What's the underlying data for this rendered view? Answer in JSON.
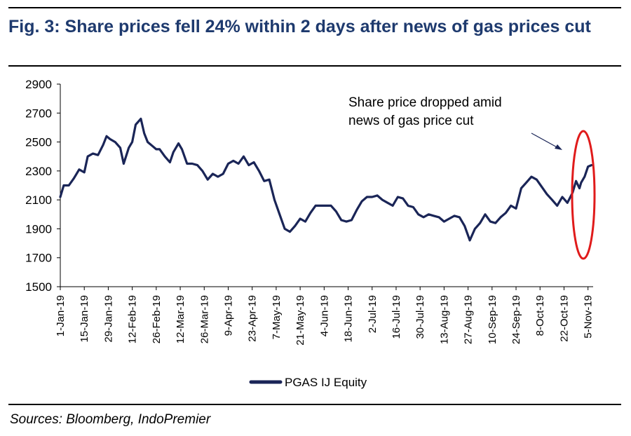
{
  "figure": {
    "title": "Fig. 3: Share prices fell 24% within 2 days after news of gas prices cut",
    "source": "Sources: Bloomberg, IndoPremier"
  },
  "colors": {
    "line": "#1a2557",
    "title": "#1e3a6e",
    "highlight": "#e01b1b"
  },
  "chart_data": {
    "type": "line",
    "title": "Fig. 3: Share prices fell 24% within 2 days after news of gas prices cut",
    "xlabel": "",
    "ylabel": "",
    "ylim": [
      1500,
      2900
    ],
    "yticks": [
      1500,
      1700,
      1900,
      2100,
      2300,
      2500,
      2700,
      2900
    ],
    "xlim": [
      "2019-01-01",
      "2019-11-08"
    ],
    "xtick_labels": [
      "1-Jan-19",
      "15-Jan-19",
      "29-Jan-19",
      "12-Feb-19",
      "26-Feb-19",
      "12-Mar-19",
      "26-Mar-19",
      "9-Apr-19",
      "23-Apr-19",
      "7-May-19",
      "21-May-19",
      "4-Jun-19",
      "18-Jun-19",
      "2-Jul-19",
      "16-Jul-19",
      "30-Jul-19",
      "13-Aug-19",
      "27-Aug-19",
      "10-Sep-19",
      "24-Sep-19",
      "8-Oct-19",
      "22-Oct-19",
      "5-Nov-19"
    ],
    "grid": false,
    "legend_position": "bottom",
    "series": [
      {
        "name": "PGAS IJ Equity",
        "x": [
          "2019-01-01",
          "2019-01-03",
          "2019-01-06",
          "2019-01-09",
          "2019-01-12",
          "2019-01-15",
          "2019-01-17",
          "2019-01-20",
          "2019-01-23",
          "2019-01-26",
          "2019-01-28",
          "2019-01-30",
          "2019-02-02",
          "2019-02-05",
          "2019-02-07",
          "2019-02-10",
          "2019-02-12",
          "2019-02-14",
          "2019-02-17",
          "2019-02-19",
          "2019-02-21",
          "2019-02-24",
          "2019-02-26",
          "2019-02-28",
          "2019-03-03",
          "2019-03-06",
          "2019-03-08",
          "2019-03-11",
          "2019-03-13",
          "2019-03-16",
          "2019-03-19",
          "2019-03-22",
          "2019-03-25",
          "2019-03-28",
          "2019-03-31",
          "2019-04-03",
          "2019-04-06",
          "2019-04-09",
          "2019-04-12",
          "2019-04-15",
          "2019-04-18",
          "2019-04-21",
          "2019-04-24",
          "2019-04-27",
          "2019-04-30",
          "2019-05-03",
          "2019-05-06",
          "2019-05-09",
          "2019-05-12",
          "2019-05-15",
          "2019-05-18",
          "2019-05-21",
          "2019-05-24",
          "2019-05-27",
          "2019-05-30",
          "2019-06-02",
          "2019-06-05",
          "2019-06-08",
          "2019-06-11",
          "2019-06-14",
          "2019-06-17",
          "2019-06-20",
          "2019-06-23",
          "2019-06-26",
          "2019-06-29",
          "2019-07-02",
          "2019-07-05",
          "2019-07-08",
          "2019-07-11",
          "2019-07-14",
          "2019-07-17",
          "2019-07-20",
          "2019-07-23",
          "2019-07-26",
          "2019-07-29",
          "2019-08-01",
          "2019-08-04",
          "2019-08-07",
          "2019-08-10",
          "2019-08-13",
          "2019-08-16",
          "2019-08-19",
          "2019-08-22",
          "2019-08-25",
          "2019-08-28",
          "2019-08-31",
          "2019-09-03",
          "2019-09-06",
          "2019-09-09",
          "2019-09-12",
          "2019-09-15",
          "2019-09-18",
          "2019-09-21",
          "2019-09-24",
          "2019-09-27",
          "2019-09-30",
          "2019-10-03",
          "2019-10-06",
          "2019-10-09",
          "2019-10-12",
          "2019-10-15",
          "2019-10-18",
          "2019-10-21",
          "2019-10-24",
          "2019-10-27",
          "2019-10-29",
          "2019-10-31",
          "2019-11-01",
          "2019-11-03",
          "2019-11-05",
          "2019-11-07"
        ],
        "values": [
          2120,
          2200,
          2200,
          2250,
          2310,
          2290,
          2400,
          2420,
          2410,
          2480,
          2540,
          2520,
          2500,
          2460,
          2350,
          2460,
          2500,
          2620,
          2660,
          2560,
          2500,
          2470,
          2450,
          2450,
          2400,
          2360,
          2430,
          2490,
          2450,
          2350,
          2350,
          2340,
          2300,
          2240,
          2280,
          2260,
          2280,
          2350,
          2370,
          2350,
          2400,
          2340,
          2360,
          2300,
          2230,
          2240,
          2100,
          2000,
          1900,
          1880,
          1920,
          1970,
          1950,
          2010,
          2060,
          2060,
          2060,
          2060,
          2020,
          1960,
          1950,
          1960,
          2030,
          2090,
          2120,
          2120,
          2130,
          2100,
          2080,
          2060,
          2120,
          2110,
          2060,
          2050,
          2000,
          1980,
          2000,
          1990,
          1980,
          1950,
          1970,
          1990,
          1980,
          1920,
          1820,
          1900,
          1940,
          2000,
          1950,
          1940,
          1980,
          2010,
          2060,
          2040,
          2180,
          2220,
          2260,
          2240,
          2190,
          2140,
          2100,
          2060,
          2120,
          2080,
          2150,
          2230,
          2180,
          2220,
          2260,
          2330,
          2340
        ]
      }
    ],
    "annotations": [
      {
        "text_line1": "Share price dropped amid",
        "text_line2": "news of gas price cut"
      }
    ]
  },
  "legend": {
    "label": "PGAS IJ Equity"
  }
}
